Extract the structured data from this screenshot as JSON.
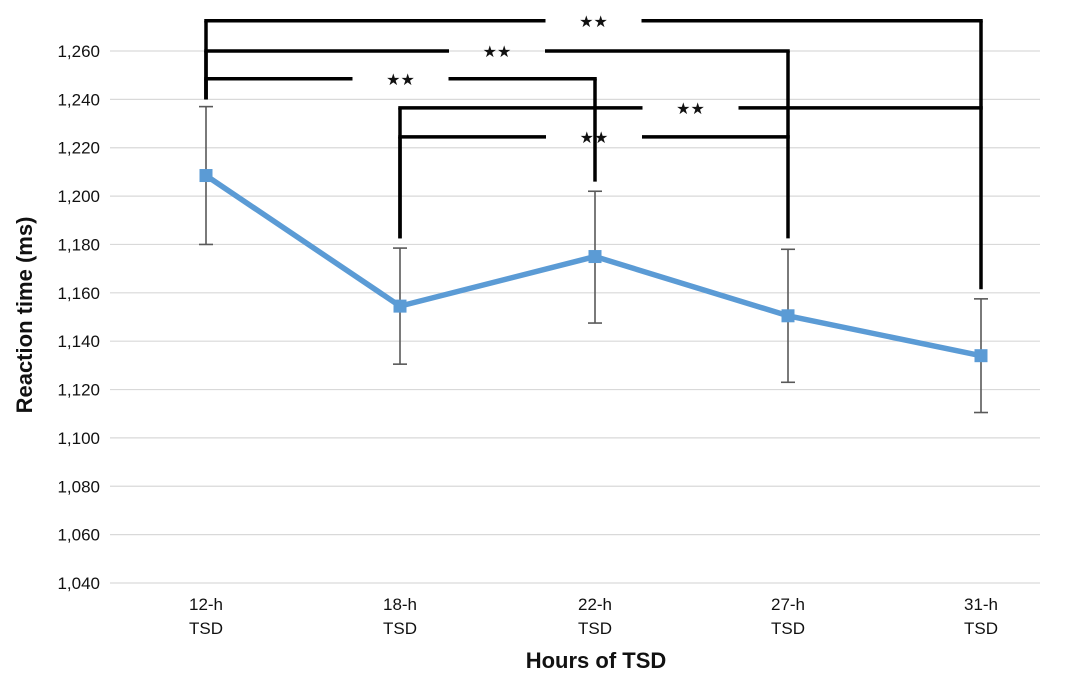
{
  "chart_data": {
    "type": "line",
    "title": "",
    "xlabel": "Hours of TSD",
    "ylabel": "Reaction time (ms)",
    "categories": [
      [
        "12-h",
        "TSD"
      ],
      [
        "18-h",
        "TSD"
      ],
      [
        "22-h",
        "TSD"
      ],
      [
        "27-h",
        "TSD"
      ],
      [
        "31-h",
        "TSD"
      ]
    ],
    "series": [
      {
        "values": [
          1208.5,
          1154.5,
          1175,
          1150.5,
          1134
        ],
        "error_low": [
          1180,
          1130.5,
          1147.5,
          1123,
          1110.5
        ],
        "error_high": [
          1237,
          1178.5,
          1202,
          1178,
          1157.5
        ],
        "color": "#5b9bd5"
      }
    ],
    "ylim": [
      1040,
      1280
    ],
    "yticks": [
      1040,
      1060,
      1080,
      1100,
      1120,
      1140,
      1160,
      1180,
      1200,
      1220,
      1240,
      1260
    ],
    "ytick_labels": [
      "1,040",
      "1,060",
      "1,080",
      "1,100",
      "1,120",
      "1,140",
      "1,160",
      "1,180",
      "1,200",
      "1,220",
      "1,240",
      "1,260"
    ],
    "grid": true,
    "legend": "none",
    "significance_brackets": [
      {
        "from": 0,
        "to": 4,
        "level": 1272.5,
        "left_drop": 1240,
        "right_drop": 1161.5,
        "label": "★★"
      },
      {
        "from": 0,
        "to": 3,
        "level": 1260,
        "left_drop": 1240,
        "right_drop": 1182.5,
        "label": "★★"
      },
      {
        "from": 0,
        "to": 2,
        "level": 1248.5,
        "left_drop": 1240,
        "right_drop": 1206,
        "label": "★★"
      },
      {
        "from": 1,
        "to": 4,
        "level": 1236.5,
        "left_drop": 1182.5,
        "right_drop": 1236.5,
        "label": "★★"
      },
      {
        "from": 1,
        "to": 3,
        "level": 1224.5,
        "left_drop": 1182.5,
        "right_drop": 1224.5,
        "label": "★★"
      }
    ],
    "colors": {
      "line": "#5b9bd5",
      "error_bar": "#595959",
      "grid": "#d9d9d9",
      "bracket": "#000000"
    }
  }
}
